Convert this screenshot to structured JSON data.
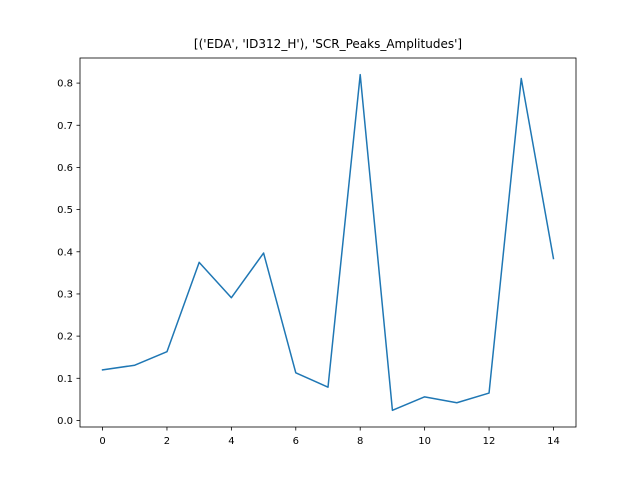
{
  "chart_data": {
    "type": "line",
    "title": "[('EDA', 'ID312_H'), 'SCR_Peaks_Amplitudes']",
    "xlabel": "",
    "ylabel": "",
    "x": [
      0,
      1,
      2,
      3,
      4,
      5,
      6,
      7,
      8,
      9,
      10,
      11,
      12,
      13,
      14
    ],
    "series": [
      {
        "values": [
          0.12,
          0.131,
          0.163,
          0.375,
          0.291,
          0.397,
          0.113,
          0.079,
          0.82,
          0.024,
          0.056,
          0.042,
          0.065,
          0.811,
          0.384
        ],
        "color": "#1f77b4"
      }
    ],
    "xlim": [
      -0.7,
      14.7
    ],
    "ylim": [
      -0.0155,
      0.8595
    ],
    "xticks": [
      0,
      2,
      4,
      6,
      8,
      10,
      12,
      14
    ],
    "xtick_labels": [
      "0",
      "2",
      "4",
      "6",
      "8",
      "10",
      "12",
      "14"
    ],
    "yticks": [
      0.0,
      0.1,
      0.2,
      0.3,
      0.4,
      0.5,
      0.6,
      0.7,
      0.8
    ],
    "ytick_labels": [
      "0.0",
      "0.1",
      "0.2",
      "0.3",
      "0.4",
      "0.5",
      "0.6",
      "0.7",
      "0.8"
    ],
    "grid": false,
    "legend": "none"
  }
}
